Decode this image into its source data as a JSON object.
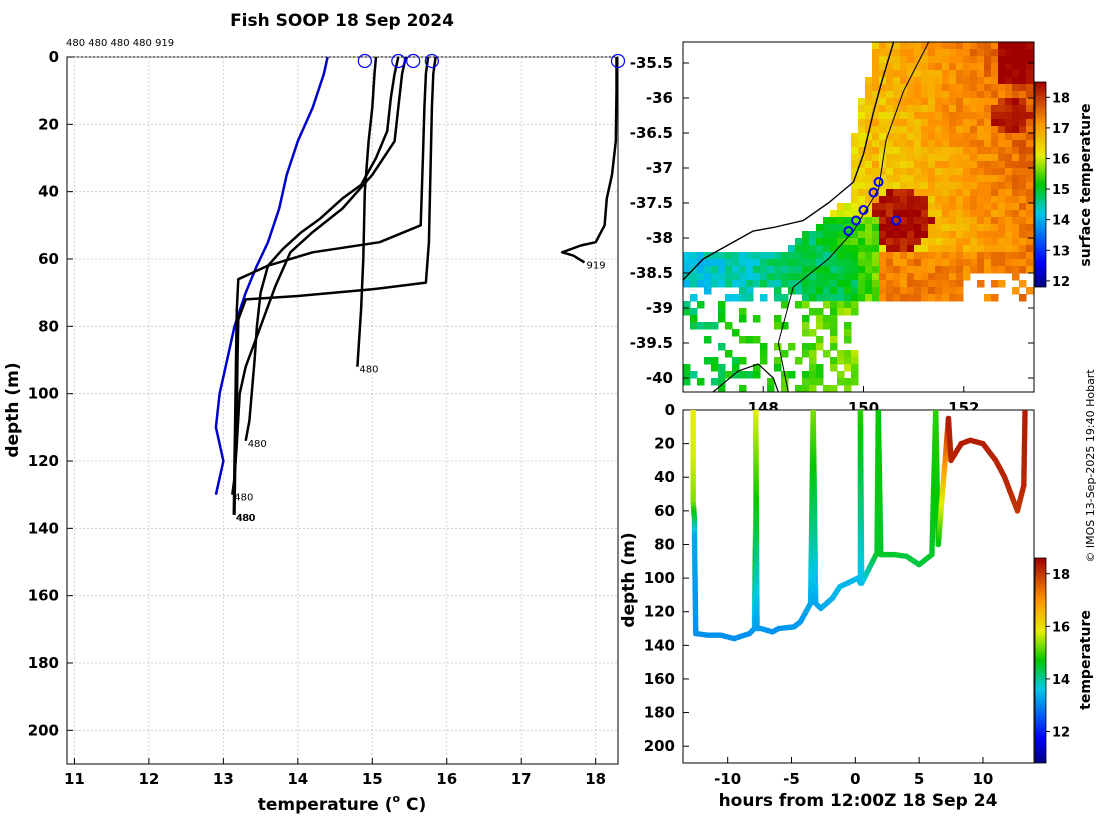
{
  "title": "Fish SOOP 18 Sep 2024",
  "header_ids": "480 480 480 480 919",
  "watermark": "© IMOS 13-Sep-2025 19:40 Hobart",
  "chart_data": [
    {
      "id": "profiles",
      "type": "line",
      "xlabel": "temperature (",
      "xlabel_sup": "o",
      "xlabel_end": " C)",
      "ylabel": "depth (m)",
      "xlim": [
        10.9,
        18.3
      ],
      "ylim": [
        0,
        210
      ],
      "xticks": [
        11,
        12,
        13,
        14,
        15,
        16,
        17,
        18
      ],
      "yticks": [
        0,
        20,
        40,
        60,
        80,
        100,
        120,
        140,
        160,
        180,
        200
      ],
      "grid": true,
      "climatology": {
        "name": "climatology",
        "color": "#0000cc",
        "points": [
          [
            14.4,
            0
          ],
          [
            14.35,
            5
          ],
          [
            14.2,
            15
          ],
          [
            14.0,
            25
          ],
          [
            13.85,
            35
          ],
          [
            13.75,
            45
          ],
          [
            13.6,
            55
          ],
          [
            13.45,
            62
          ],
          [
            13.3,
            70
          ],
          [
            13.15,
            80
          ],
          [
            13.05,
            90
          ],
          [
            12.95,
            100
          ],
          [
            12.9,
            110
          ],
          [
            13.0,
            120
          ],
          [
            12.9,
            130
          ]
        ]
      },
      "series": [
        {
          "name": "480",
          "label_depth": 92,
          "points": [
            [
              15.05,
              0
            ],
            [
              15.03,
              5
            ],
            [
              15.0,
              15
            ],
            [
              14.95,
              25
            ],
            [
              14.9,
              40
            ],
            [
              14.88,
              60
            ],
            [
              14.85,
              75
            ],
            [
              14.82,
              85
            ],
            [
              14.8,
              92
            ]
          ]
        },
        {
          "name": "480",
          "label_depth": 114,
          "points": [
            [
              15.35,
              0
            ],
            [
              15.3,
              5
            ],
            [
              15.25,
              12
            ],
            [
              15.2,
              22
            ],
            [
              15.05,
              30
            ],
            [
              14.85,
              38
            ],
            [
              14.6,
              42
            ],
            [
              14.3,
              48
            ],
            [
              14.05,
              52
            ],
            [
              13.8,
              57
            ],
            [
              13.6,
              62
            ],
            [
              13.5,
              70
            ],
            [
              13.45,
              80
            ],
            [
              13.42,
              90
            ],
            [
              13.38,
              100
            ],
            [
              13.35,
              108
            ],
            [
              13.3,
              114
            ]
          ]
        },
        {
          "name": "480",
          "label_depth": 130,
          "points": [
            [
              15.45,
              0
            ],
            [
              15.4,
              5
            ],
            [
              15.35,
              15
            ],
            [
              15.3,
              25
            ],
            [
              15.0,
              35
            ],
            [
              14.6,
              45
            ],
            [
              14.2,
              52
            ],
            [
              13.9,
              58
            ],
            [
              13.7,
              68
            ],
            [
              13.5,
              80
            ],
            [
              13.3,
              92
            ],
            [
              13.22,
              100
            ],
            [
              13.18,
              115
            ],
            [
              13.15,
              125
            ],
            [
              13.12,
              130
            ]
          ]
        },
        {
          "name": "480",
          "label_depth": 136,
          "points": [
            [
              15.75,
              0
            ],
            [
              15.72,
              5
            ],
            [
              15.7,
              15
            ],
            [
              15.68,
              30
            ],
            [
              15.65,
              50
            ],
            [
              15.1,
              55
            ],
            [
              14.2,
              58
            ],
            [
              13.6,
              62
            ],
            [
              13.2,
              66
            ],
            [
              13.18,
              75
            ],
            [
              13.17,
              90
            ],
            [
              13.16,
              105
            ],
            [
              13.15,
              120
            ],
            [
              13.14,
              136
            ]
          ]
        },
        {
          "name": "480",
          "label_depth": 136,
          "points": [
            [
              15.85,
              0
            ],
            [
              15.82,
              5
            ],
            [
              15.8,
              15
            ],
            [
              15.78,
              35
            ],
            [
              15.76,
              55
            ],
            [
              15.72,
              67
            ],
            [
              15.0,
              69
            ],
            [
              14.0,
              71
            ],
            [
              13.3,
              72
            ],
            [
              13.2,
              78
            ],
            [
              13.19,
              90
            ],
            [
              13.18,
              105
            ],
            [
              13.16,
              120
            ],
            [
              13.15,
              136
            ]
          ]
        },
        {
          "name": "919",
          "label_depth": 61,
          "points": [
            [
              18.28,
              0
            ],
            [
              18.28,
              10
            ],
            [
              18.27,
              25
            ],
            [
              18.22,
              35
            ],
            [
              18.15,
              42
            ],
            [
              18.12,
              50
            ],
            [
              18.0,
              55
            ],
            [
              17.8,
              56
            ],
            [
              17.55,
              58
            ],
            [
              17.7,
              59
            ],
            [
              17.85,
              61
            ]
          ]
        }
      ],
      "markers_temp": [
        14.9,
        15.35,
        15.55,
        15.8,
        18.3
      ]
    },
    {
      "id": "sst_map",
      "type": "heatmap",
      "colorbar_label": "surface temperature",
      "colorbar_ticks": [
        12,
        13,
        14,
        15,
        16,
        17,
        18
      ],
      "clim": [
        11.8,
        18.5
      ],
      "lat_ticks": [
        -35.5,
        -36,
        -36.5,
        -37,
        -37.5,
        -38,
        -38.5,
        -39,
        -39.5,
        -40
      ],
      "lon_ticks": [
        148,
        150,
        152
      ],
      "lat_range": [
        -40.2,
        -35.2
      ],
      "lon_range": [
        146.4,
        153.4
      ],
      "coast": [
        [
          146.4,
          -38.6
        ],
        [
          146.8,
          -38.3
        ],
        [
          147.3,
          -38.1
        ],
        [
          147.8,
          -37.9
        ],
        [
          148.2,
          -37.85
        ],
        [
          148.8,
          -37.75
        ],
        [
          149.3,
          -37.5
        ],
        [
          149.8,
          -37.2
        ],
        [
          150.0,
          -36.8
        ],
        [
          150.2,
          -36.2
        ],
        [
          150.35,
          -35.8
        ],
        [
          150.6,
          -35.2
        ]
      ],
      "shelf": [
        [
          148.5,
          -40.2
        ],
        [
          148.3,
          -39.5
        ],
        [
          148.6,
          -38.7
        ],
        [
          149.3,
          -38.3
        ],
        [
          149.8,
          -37.9
        ],
        [
          150.3,
          -37.3
        ],
        [
          150.45,
          -36.6
        ],
        [
          150.8,
          -35.9
        ],
        [
          151.3,
          -35.2
        ]
      ],
      "tasmania": [
        [
          147.0,
          -40.2
        ],
        [
          147.5,
          -39.9
        ],
        [
          147.9,
          -39.8
        ],
        [
          148.2,
          -40.0
        ],
        [
          148.3,
          -40.2
        ]
      ],
      "casts": [
        [
          150.3,
          -37.2
        ],
        [
          150.2,
          -37.35
        ],
        [
          150.0,
          -37.6
        ],
        [
          149.85,
          -37.75
        ],
        [
          149.7,
          -37.9
        ],
        [
          150.65,
          -37.75
        ]
      ]
    },
    {
      "id": "section",
      "type": "scatter",
      "xlabel": "hours from 12:00Z 18 Sep 24",
      "ylabel": "depth (m)",
      "colorbar_label": "temperature",
      "colorbar_ticks": [
        12,
        14,
        16,
        18
      ],
      "clim": [
        10.8,
        18.6
      ],
      "xlim": [
        -13.5,
        14
      ],
      "ylim": [
        0,
        210
      ],
      "xticks": [
        -10,
        -5,
        0,
        5,
        10
      ],
      "yticks": [
        0,
        20,
        40,
        60,
        80,
        100,
        120,
        140,
        160,
        180,
        200
      ],
      "track": [
        [
          -12.7,
          0,
          15.8
        ],
        [
          -12.7,
          30,
          15.7
        ],
        [
          -12.7,
          55,
          15.3
        ],
        [
          -12.6,
          65,
          14.3
        ],
        [
          -12.6,
          75,
          13.3
        ],
        [
          -12.5,
          133,
          13.1
        ],
        [
          -11.5,
          134,
          13.1
        ],
        [
          -10.5,
          134,
          13.1
        ],
        [
          -9.5,
          136,
          13.1
        ],
        [
          -8.3,
          133,
          13.1
        ],
        [
          -7.9,
          130,
          13.2
        ],
        [
          -7.8,
          60,
          15.5
        ],
        [
          -7.8,
          0,
          15.8
        ],
        [
          -7.7,
          130,
          13.2
        ],
        [
          -7.4,
          130,
          13.2
        ],
        [
          -6.5,
          132,
          13.1
        ],
        [
          -6.0,
          130,
          13.1
        ],
        [
          -4.8,
          129,
          13.2
        ],
        [
          -4.3,
          126,
          13.2
        ],
        [
          -3.5,
          115,
          13.3
        ],
        [
          -3.3,
          0,
          15.3
        ],
        [
          -3.1,
          115,
          13.3
        ],
        [
          -2.7,
          118,
          13.3
        ],
        [
          -1.8,
          112,
          13.4
        ],
        [
          -1.2,
          105,
          13.5
        ],
        [
          -0.6,
          103,
          13.4
        ],
        [
          0.2,
          100,
          13.5
        ],
        [
          0.4,
          103,
          13.5
        ],
        [
          0.4,
          0,
          14.9
        ],
        [
          0.5,
          103,
          13.5
        ],
        [
          1.7,
          85,
          14.5
        ],
        [
          1.8,
          0,
          14.7
        ],
        [
          2.0,
          86,
          14.5
        ],
        [
          3.0,
          86,
          14.5
        ],
        [
          4.0,
          87,
          14.4
        ],
        [
          5.0,
          92,
          14.4
        ],
        [
          6.0,
          86,
          14.5
        ],
        [
          6.3,
          0,
          14.9
        ],
        [
          6.5,
          80,
          14.6
        ],
        [
          7.3,
          5,
          18.3
        ],
        [
          7.5,
          30,
          18.2
        ],
        [
          8.3,
          20,
          18.3
        ],
        [
          9.0,
          18,
          18.3
        ],
        [
          10.0,
          20,
          18.3
        ],
        [
          11.0,
          30,
          18.2
        ],
        [
          11.7,
          40,
          18.2
        ],
        [
          12.3,
          52,
          18.1
        ],
        [
          12.7,
          60,
          18.0
        ],
        [
          13.2,
          45,
          18.2
        ],
        [
          13.3,
          0,
          18.3
        ]
      ]
    }
  ]
}
